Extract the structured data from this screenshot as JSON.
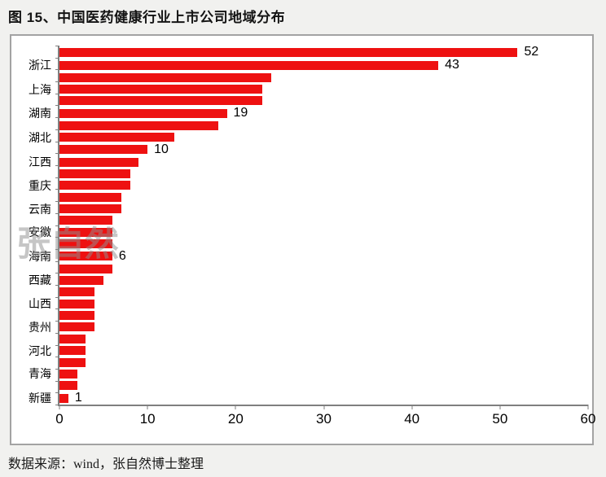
{
  "title": "图 15、中国医药健康行业上市公司地域分布",
  "source": "数据来源：wind，张自然博士整理",
  "watermark": "张自然",
  "chart_data": {
    "type": "bar",
    "orientation": "horizontal",
    "title": "图 15、中国医药健康行业上市公司地域分布",
    "categories": [
      "",
      "浙江",
      "",
      "上海",
      "",
      "湖南",
      "",
      "湖北",
      "",
      "江西",
      "",
      "重庆",
      "",
      "云南",
      "",
      "安徽",
      "",
      "海南",
      "",
      "西藏",
      "",
      "山西",
      "",
      "贵州",
      "",
      "河北",
      "",
      "青海",
      "",
      "新疆"
    ],
    "values": [
      52,
      43,
      24,
      23,
      23,
      19,
      18,
      13,
      10,
      9,
      8,
      8,
      7,
      7,
      6,
      6,
      6,
      6,
      6,
      5,
      4,
      4,
      4,
      4,
      3,
      3,
      3,
      2,
      2,
      1
    ],
    "bar_labels": [
      "52",
      "43",
      "",
      "",
      "",
      "19",
      "",
      "",
      "10",
      "",
      "",
      "",
      "",
      "",
      "",
      "",
      "",
      "6",
      "",
      "",
      "",
      "",
      "",
      "",
      "",
      "",
      "",
      "",
      "",
      "1"
    ],
    "x_ticks": [
      0,
      10,
      20,
      30,
      40,
      50,
      60
    ],
    "x_tick_labels": [
      "0",
      "10",
      "20",
      "30",
      "40",
      "50",
      "60"
    ],
    "xlim": [
      0,
      60
    ],
    "bar_color": "#ee1111",
    "axis_color": "#7f7f7f",
    "grid": "off",
    "legend": "none"
  }
}
